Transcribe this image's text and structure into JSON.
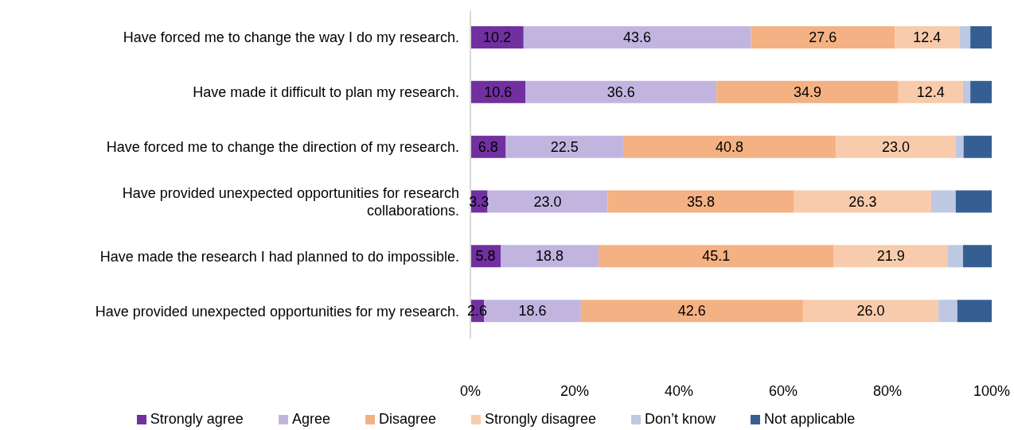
{
  "chart_data": {
    "type": "bar",
    "orientation": "horizontal",
    "stacked": true,
    "categories": [
      "Have forced me to change the way I do my research.",
      "Have made it difficult to plan my research.",
      "Have forced me to change the direction of my research.",
      "Have provided unexpected opportunities for research collaborations.",
      "Have made the research I had planned to do impossible.",
      "Have provided unexpected opportunities for my research."
    ],
    "series": [
      {
        "name": "Strongly agree",
        "color": "#7030a0",
        "values": [
          10.2,
          10.6,
          6.8,
          3.3,
          5.8,
          2.6
        ],
        "value_labels": [
          "10.2",
          "10.6",
          "6.8",
          "3.3",
          "5.8",
          "2.6"
        ]
      },
      {
        "name": "Agree",
        "color": "#c1b5e0",
        "values": [
          43.6,
          36.6,
          22.5,
          23.0,
          18.8,
          18.6
        ],
        "value_labels": [
          "43.6",
          "36.6",
          "22.5",
          "23.0",
          "18.8",
          "18.6"
        ]
      },
      {
        "name": "Disagree",
        "color": "#f4b183",
        "values": [
          27.6,
          34.9,
          40.8,
          35.8,
          45.1,
          42.6
        ],
        "value_labels": [
          "27.6",
          "34.9",
          "40.8",
          "35.8",
          "45.1",
          "42.6"
        ]
      },
      {
        "name": "Strongly disagree",
        "color": "#f8cbad",
        "values": [
          12.4,
          12.4,
          23.0,
          26.3,
          21.9,
          26.0
        ],
        "value_labels": [
          "12.4",
          "12.4",
          "23.0",
          "26.3",
          "21.9",
          "26.0"
        ]
      },
      {
        "name": "Don’t know",
        "color": "#bec8e3",
        "values": [
          2.1,
          1.4,
          1.5,
          4.7,
          2.9,
          3.6
        ]
      },
      {
        "name": "Not applicable",
        "color": "#355f93",
        "values": [
          4.1,
          4.1,
          5.4,
          6.9,
          5.5,
          6.6
        ]
      }
    ],
    "xlim": [
      0,
      100
    ],
    "xticks": [
      {
        "value": 0,
        "label": "0%"
      },
      {
        "value": 20,
        "label": "20%"
      },
      {
        "value": 40,
        "label": "40%"
      },
      {
        "value": 60,
        "label": "60%"
      },
      {
        "value": 80,
        "label": "80%"
      },
      {
        "value": 100,
        "label": "100%"
      }
    ],
    "legend": "bottom"
  }
}
